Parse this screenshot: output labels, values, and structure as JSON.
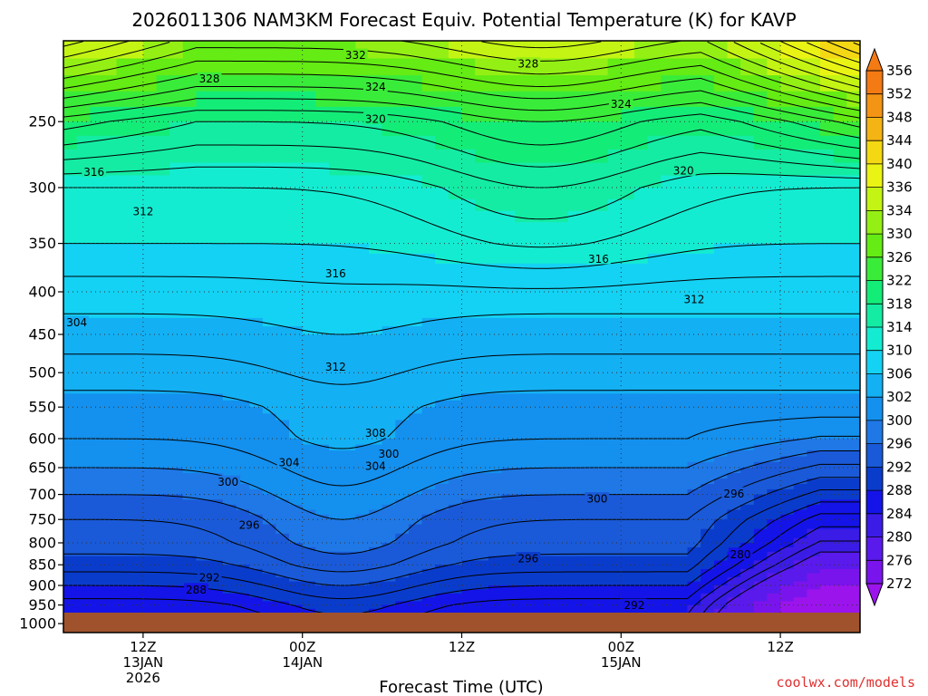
{
  "chart_data": {
    "type": "heatmap",
    "title": "2026011306 NAM3KM Forecast Equiv. Potential Temperature (K) for KAVP",
    "xlabel": "Forecast Time (UTC)",
    "ylabel": "",
    "y_ticks": [
      250,
      300,
      350,
      400,
      450,
      500,
      550,
      600,
      650,
      700,
      750,
      800,
      850,
      900,
      950,
      1000
    ],
    "y_tick_labels": [
      "250",
      "300",
      "350",
      "400",
      "450",
      "500",
      "550",
      "600",
      "650",
      "700",
      "750",
      "800",
      "850",
      "900",
      "950",
      "1000"
    ],
    "ylim": [
      1025,
      200
    ],
    "y_scale": "log-pressure",
    "x_range_hours_from_start": [
      0,
      60
    ],
    "x_ticks": [
      {
        "hour": 6,
        "lines": [
          "12Z",
          "13JAN",
          "2026"
        ]
      },
      {
        "hour": 18,
        "lines": [
          "00Z",
          "14JAN"
        ]
      },
      {
        "hour": 30,
        "lines": [
          "12Z"
        ]
      },
      {
        "hour": 42,
        "lines": [
          "00Z",
          "15JAN"
        ]
      },
      {
        "hour": 54,
        "lines": [
          "12Z"
        ]
      }
    ],
    "grid": "dotted",
    "colorbar": {
      "levels": [
        272,
        276,
        280,
        284,
        288,
        292,
        296,
        300,
        302,
        306,
        310,
        314,
        318,
        322,
        326,
        330,
        334,
        336,
        340,
        344,
        348,
        352,
        356
      ],
      "colors": [
        "#9b14ec",
        "#7a14ec",
        "#5a1aec",
        "#3a1ce6",
        "#1414e8",
        "#0a3ccc",
        "#1a5ad8",
        "#1f78e6",
        "#1490ee",
        "#14b0f4",
        "#14d2f4",
        "#14ecd2",
        "#14eca4",
        "#14ec78",
        "#3aec3a",
        "#64ec14",
        "#94f014",
        "#c4f414",
        "#eaf414",
        "#f4d814",
        "#f4b414",
        "#f49414",
        "#f47a14"
      ]
    },
    "ground_color": "#a0522d",
    "ground_pressure_hpa": 970,
    "contour_labels": [
      {
        "value": "332",
        "hour": 22,
        "p": 208
      },
      {
        "value": "328",
        "hour": 11,
        "p": 222
      },
      {
        "value": "328",
        "hour": 35,
        "p": 213
      },
      {
        "value": "324",
        "hour": 23.5,
        "p": 227
      },
      {
        "value": "324",
        "hour": 42,
        "p": 238
      },
      {
        "value": "320",
        "hour": 23.5,
        "p": 248
      },
      {
        "value": "320",
        "hour": 46.7,
        "p": 286
      },
      {
        "value": "316",
        "hour": 2.3,
        "p": 287
      },
      {
        "value": "316",
        "hour": 20.5,
        "p": 380
      },
      {
        "value": "316",
        "hour": 40.3,
        "p": 365
      },
      {
        "value": "312",
        "hour": 6,
        "p": 320
      },
      {
        "value": "312",
        "hour": 20.5,
        "p": 492
      },
      {
        "value": "312",
        "hour": 47.5,
        "p": 408
      },
      {
        "value": "304",
        "hour": 1,
        "p": 435
      },
      {
        "value": "308",
        "hour": 23.5,
        "p": 590
      },
      {
        "value": "304",
        "hour": 17,
        "p": 640
      },
      {
        "value": "304",
        "hour": 23.5,
        "p": 647
      },
      {
        "value": "300",
        "hour": 24.5,
        "p": 625
      },
      {
        "value": "300",
        "hour": 12.4,
        "p": 676
      },
      {
        "value": "300",
        "hour": 40.2,
        "p": 708
      },
      {
        "value": "296",
        "hour": 14,
        "p": 761
      },
      {
        "value": "296",
        "hour": 35,
        "p": 835
      },
      {
        "value": "296",
        "hour": 50.5,
        "p": 698
      },
      {
        "value": "292",
        "hour": 11,
        "p": 880
      },
      {
        "value": "288",
        "hour": 10,
        "p": 910
      },
      {
        "value": "292",
        "hour": 43,
        "p": 950
      },
      {
        "value": "280",
        "hour": 51,
        "p": 825
      }
    ]
  },
  "credit": "coolwx.com/models"
}
